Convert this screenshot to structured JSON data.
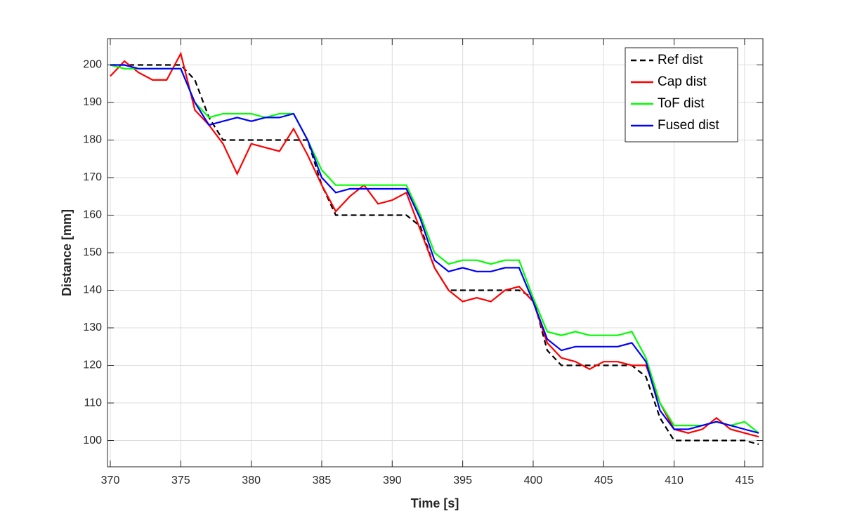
{
  "chart_data": {
    "type": "line",
    "xlabel": "Time [s]",
    "ylabel": "Distance [mm]",
    "x": [
      370,
      371,
      372,
      373,
      374,
      375,
      376,
      377,
      378,
      379,
      380,
      381,
      382,
      383,
      384,
      385,
      386,
      387,
      388,
      389,
      390,
      391,
      392,
      393,
      394,
      395,
      396,
      397,
      398,
      399,
      400,
      401,
      402,
      403,
      404,
      405,
      406,
      407,
      408,
      409,
      410,
      411,
      412,
      413,
      414,
      415,
      416
    ],
    "series": [
      {
        "name": "Ref dist",
        "color": "#000000",
        "dashed": true,
        "values": [
          200,
          200,
          200,
          200,
          200,
          200,
          196,
          186,
          180,
          180,
          180,
          180,
          180,
          180,
          180,
          168,
          160,
          160,
          160,
          160,
          160,
          160,
          157,
          146,
          140,
          140,
          140,
          140,
          140,
          140,
          138,
          124,
          120,
          120,
          120,
          120,
          120,
          120,
          117,
          106,
          100,
          100,
          100,
          100,
          100,
          100,
          99
        ]
      },
      {
        "name": "Cap dist",
        "color": "#ff0000",
        "dashed": false,
        "values": [
          197,
          201,
          198,
          196,
          196,
          203,
          188,
          184,
          179,
          171,
          179,
          178,
          177,
          183,
          176,
          168,
          161,
          165,
          168,
          163,
          164,
          166,
          156,
          146,
          140,
          137,
          138,
          137,
          140,
          141,
          137,
          126,
          122,
          121,
          119,
          121,
          121,
          120,
          120,
          110,
          103,
          102,
          103,
          106,
          103,
          102,
          101
        ]
      },
      {
        "name": "ToF dist",
        "color": "#00ff00",
        "dashed": false,
        "values": [
          200,
          199,
          199,
          199,
          199,
          199,
          190,
          186,
          187,
          187,
          187,
          186,
          187,
          187,
          180,
          172,
          168,
          168,
          168,
          168,
          168,
          168,
          160,
          150,
          147,
          148,
          148,
          147,
          148,
          148,
          138,
          129,
          128,
          129,
          128,
          128,
          128,
          129,
          122,
          110,
          104,
          104,
          104,
          105,
          104,
          105,
          102
        ]
      },
      {
        "name": "Fused dist",
        "color": "#0000ff",
        "dashed": false,
        "values": [
          200,
          200,
          199,
          199,
          199,
          199,
          190,
          184,
          185,
          186,
          185,
          186,
          186,
          187,
          180,
          170,
          166,
          167,
          167,
          167,
          167,
          167,
          159,
          148,
          145,
          146,
          145,
          145,
          146,
          146,
          137,
          127,
          124,
          125,
          125,
          125,
          125,
          126,
          121,
          108,
          103,
          103,
          104,
          105,
          104,
          103,
          102
        ]
      }
    ],
    "xlim": [
      369.8,
      416.3
    ],
    "xticks": [
      370,
      375,
      380,
      385,
      390,
      395,
      400,
      405,
      410,
      415
    ],
    "ylim": [
      93,
      207
    ],
    "yticks": [
      100,
      110,
      120,
      130,
      140,
      150,
      160,
      170,
      180,
      190,
      200
    ],
    "grid": true,
    "legend": "northeast"
  }
}
